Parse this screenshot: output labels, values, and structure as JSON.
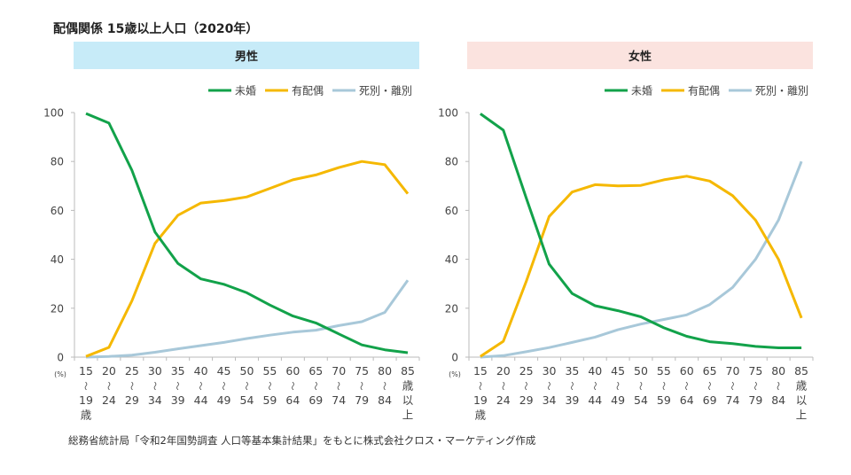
{
  "title": "配偶関係  15歳以上人口（2020年）",
  "footnote": "総務省統計局「令和2年国勢調査 人口等基本集計結果」をもとに株式会社クロス・マーケティング作成",
  "chart_data": [
    {
      "type": "line",
      "title": "男性",
      "banner_color": "#c7ebf8",
      "ylabel": "(%)",
      "ylim": [
        0,
        100
      ],
      "yticks": [
        0,
        20,
        40,
        60,
        80,
        100
      ],
      "legend_position": "top-right",
      "categories": [
        [
          "15",
          "〜",
          "19",
          "歳"
        ],
        [
          "20",
          "〜",
          "24"
        ],
        [
          "25",
          "〜",
          "29"
        ],
        [
          "30",
          "〜",
          "34"
        ],
        [
          "35",
          "〜",
          "39"
        ],
        [
          "40",
          "〜",
          "44"
        ],
        [
          "45",
          "〜",
          "49"
        ],
        [
          "50",
          "〜",
          "54"
        ],
        [
          "55",
          "〜",
          "59"
        ],
        [
          "60",
          "〜",
          "64"
        ],
        [
          "65",
          "〜",
          "69"
        ],
        [
          "70",
          "〜",
          "74"
        ],
        [
          "75",
          "〜",
          "79"
        ],
        [
          "80",
          "〜",
          "84"
        ],
        [
          "85",
          "歳",
          "以",
          "上"
        ]
      ],
      "series": [
        {
          "name": "未婚",
          "color": "#12a24a",
          "values": [
            99.6,
            95.7,
            76.4,
            51.2,
            38.3,
            32.0,
            29.8,
            26.3,
            21.3,
            16.8,
            14.0,
            9.5,
            5.0,
            3.0,
            1.8
          ]
        },
        {
          "name": "有配偶",
          "color": "#f5b800",
          "values": [
            0.3,
            4.0,
            23.0,
            46.5,
            58.0,
            63.0,
            64.0,
            65.5,
            69.0,
            72.5,
            74.5,
            77.5,
            80.0,
            78.7,
            66.8
          ]
        },
        {
          "name": "死別・離別",
          "color": "#a8c8d9",
          "values": [
            0.0,
            0.3,
            0.8,
            2.0,
            3.4,
            4.7,
            6.0,
            7.6,
            9.0,
            10.2,
            11.0,
            12.9,
            14.5,
            18.3,
            31.4
          ]
        }
      ]
    },
    {
      "type": "line",
      "title": "女性",
      "banner_color": "#fbe3df",
      "ylabel": "(%)",
      "ylim": [
        0,
        100
      ],
      "yticks": [
        0,
        20,
        40,
        60,
        80,
        100
      ],
      "legend_position": "top-right",
      "categories": [
        [
          "15",
          "〜",
          "19",
          "歳"
        ],
        [
          "20",
          "〜",
          "24"
        ],
        [
          "25",
          "〜",
          "29"
        ],
        [
          "30",
          "〜",
          "34"
        ],
        [
          "35",
          "〜",
          "39"
        ],
        [
          "40",
          "〜",
          "44"
        ],
        [
          "45",
          "〜",
          "49"
        ],
        [
          "50",
          "〜",
          "54"
        ],
        [
          "55",
          "〜",
          "59"
        ],
        [
          "60",
          "〜",
          "64"
        ],
        [
          "65",
          "〜",
          "69"
        ],
        [
          "70",
          "〜",
          "74"
        ],
        [
          "75",
          "〜",
          "79"
        ],
        [
          "80",
          "〜",
          "84"
        ],
        [
          "85",
          "歳",
          "以",
          "上"
        ]
      ],
      "series": [
        {
          "name": "未婚",
          "color": "#12a24a",
          "values": [
            99.5,
            92.8,
            65.0,
            38.0,
            26.0,
            21.0,
            19.0,
            16.5,
            12.0,
            8.5,
            6.3,
            5.5,
            4.4,
            3.8,
            3.8
          ]
        },
        {
          "name": "有配偶",
          "color": "#f5b800",
          "values": [
            0.3,
            6.5,
            31.0,
            57.5,
            67.5,
            70.5,
            70.0,
            70.2,
            72.5,
            74.0,
            72.0,
            66.0,
            56.0,
            40.0,
            16.0
          ]
        },
        {
          "name": "死別・離別",
          "color": "#a8c8d9",
          "values": [
            0.0,
            0.6,
            2.2,
            3.9,
            6.0,
            8.2,
            11.2,
            13.5,
            15.4,
            17.3,
            21.5,
            28.5,
            40.0,
            56.0,
            80.0
          ]
        }
      ]
    }
  ]
}
